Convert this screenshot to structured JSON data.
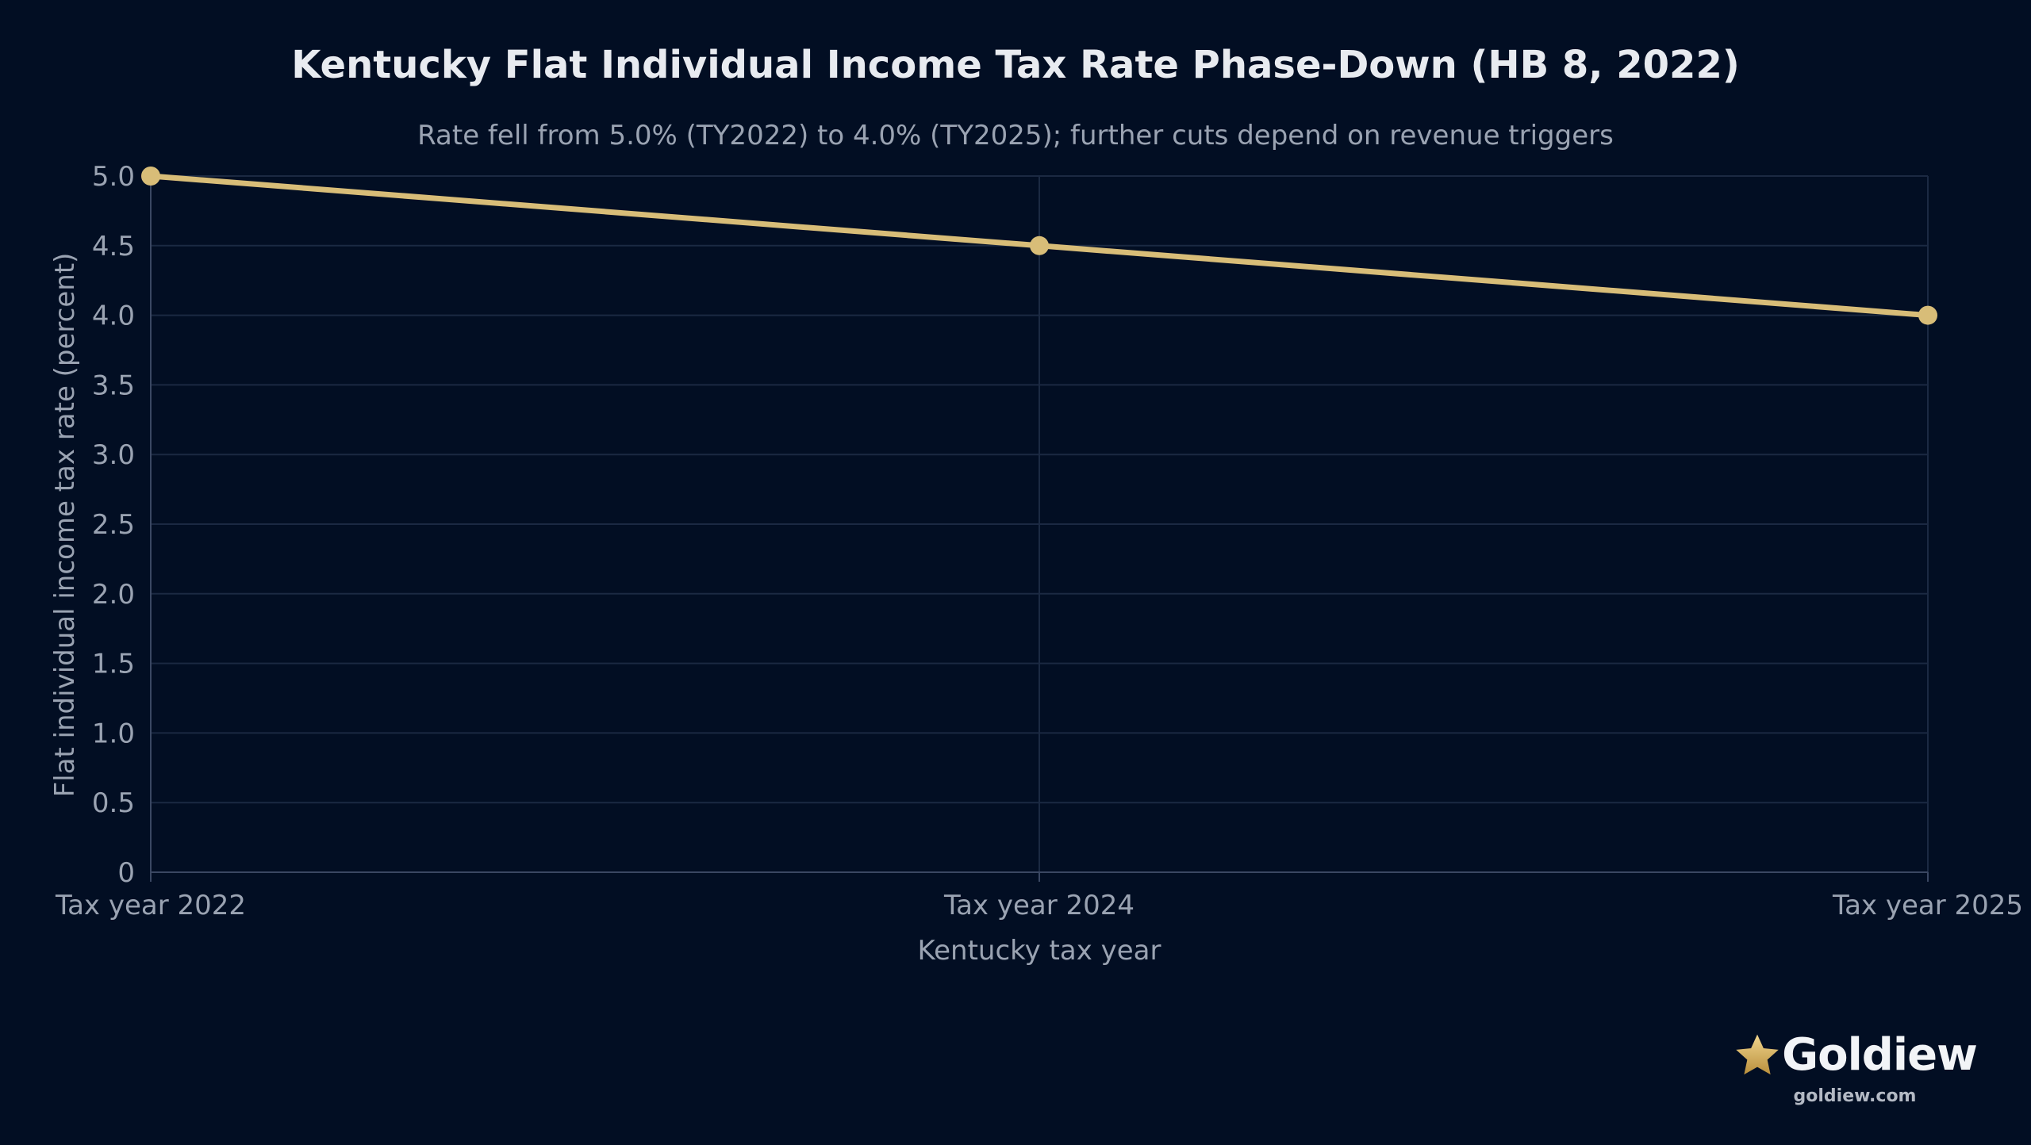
{
  "chart_data": {
    "type": "line",
    "title": "Kentucky Flat Individual Income Tax Rate Phase-Down (HB 8, 2022)",
    "subtitle": "Rate fell from 5.0% (TY2022) to 4.0% (TY2025); further cuts depend on revenue triggers",
    "xlabel": "Kentucky tax year",
    "ylabel": "Flat individual income tax rate (percent)",
    "categories": [
      "Tax year 2022",
      "Tax year 2024",
      "Tax year 2025"
    ],
    "series": [
      {
        "values": [
          5.0,
          4.5,
          4.0
        ]
      }
    ],
    "ylim": [
      0,
      5
    ],
    "yticks": [
      "0",
      "0.5",
      "1.0",
      "1.5",
      "2.0",
      "2.5",
      "3.0",
      "3.5",
      "4.0",
      "4.5",
      "5.0"
    ],
    "grid": true,
    "legend": "none",
    "colors": {
      "background": "#020e23",
      "line": "#d8bd78",
      "grid": "#1b2942"
    }
  },
  "brand": {
    "name": "Goldiew",
    "url": "goldiew.com",
    "icon": "star-icon"
  }
}
